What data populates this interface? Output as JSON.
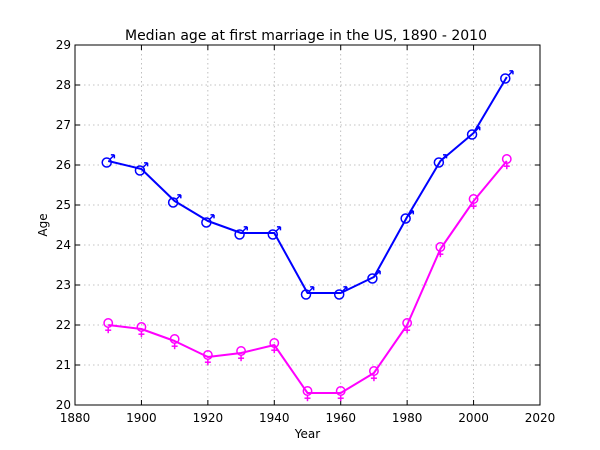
{
  "chart_data": {
    "type": "line",
    "title": "Median age at first marriage in the US, 1890 - 2010",
    "xlabel": "Year",
    "ylabel": "Age",
    "xlim": [
      1880,
      2020
    ],
    "ylim": [
      20,
      29
    ],
    "xticks": [
      1880,
      1900,
      1920,
      1940,
      1960,
      1980,
      2000,
      2020
    ],
    "yticks": [
      20,
      21,
      22,
      23,
      24,
      25,
      26,
      27,
      28,
      29
    ],
    "grid": true,
    "x": [
      1890,
      1900,
      1910,
      1920,
      1930,
      1940,
      1950,
      1960,
      1970,
      1980,
      1990,
      2000,
      2010
    ],
    "series": [
      {
        "marker": "male-symbol-icon",
        "color": "#0000ff",
        "values": [
          26.1,
          25.9,
          25.1,
          24.6,
          24.3,
          24.3,
          22.8,
          22.8,
          23.2,
          24.7,
          26.1,
          26.8,
          28.2
        ]
      },
      {
        "marker": "female-symbol-icon",
        "color": "#ff00ff",
        "values": [
          22.0,
          21.9,
          21.6,
          21.2,
          21.3,
          21.5,
          20.3,
          20.3,
          20.8,
          22.0,
          23.9,
          25.1,
          26.1
        ]
      }
    ]
  }
}
